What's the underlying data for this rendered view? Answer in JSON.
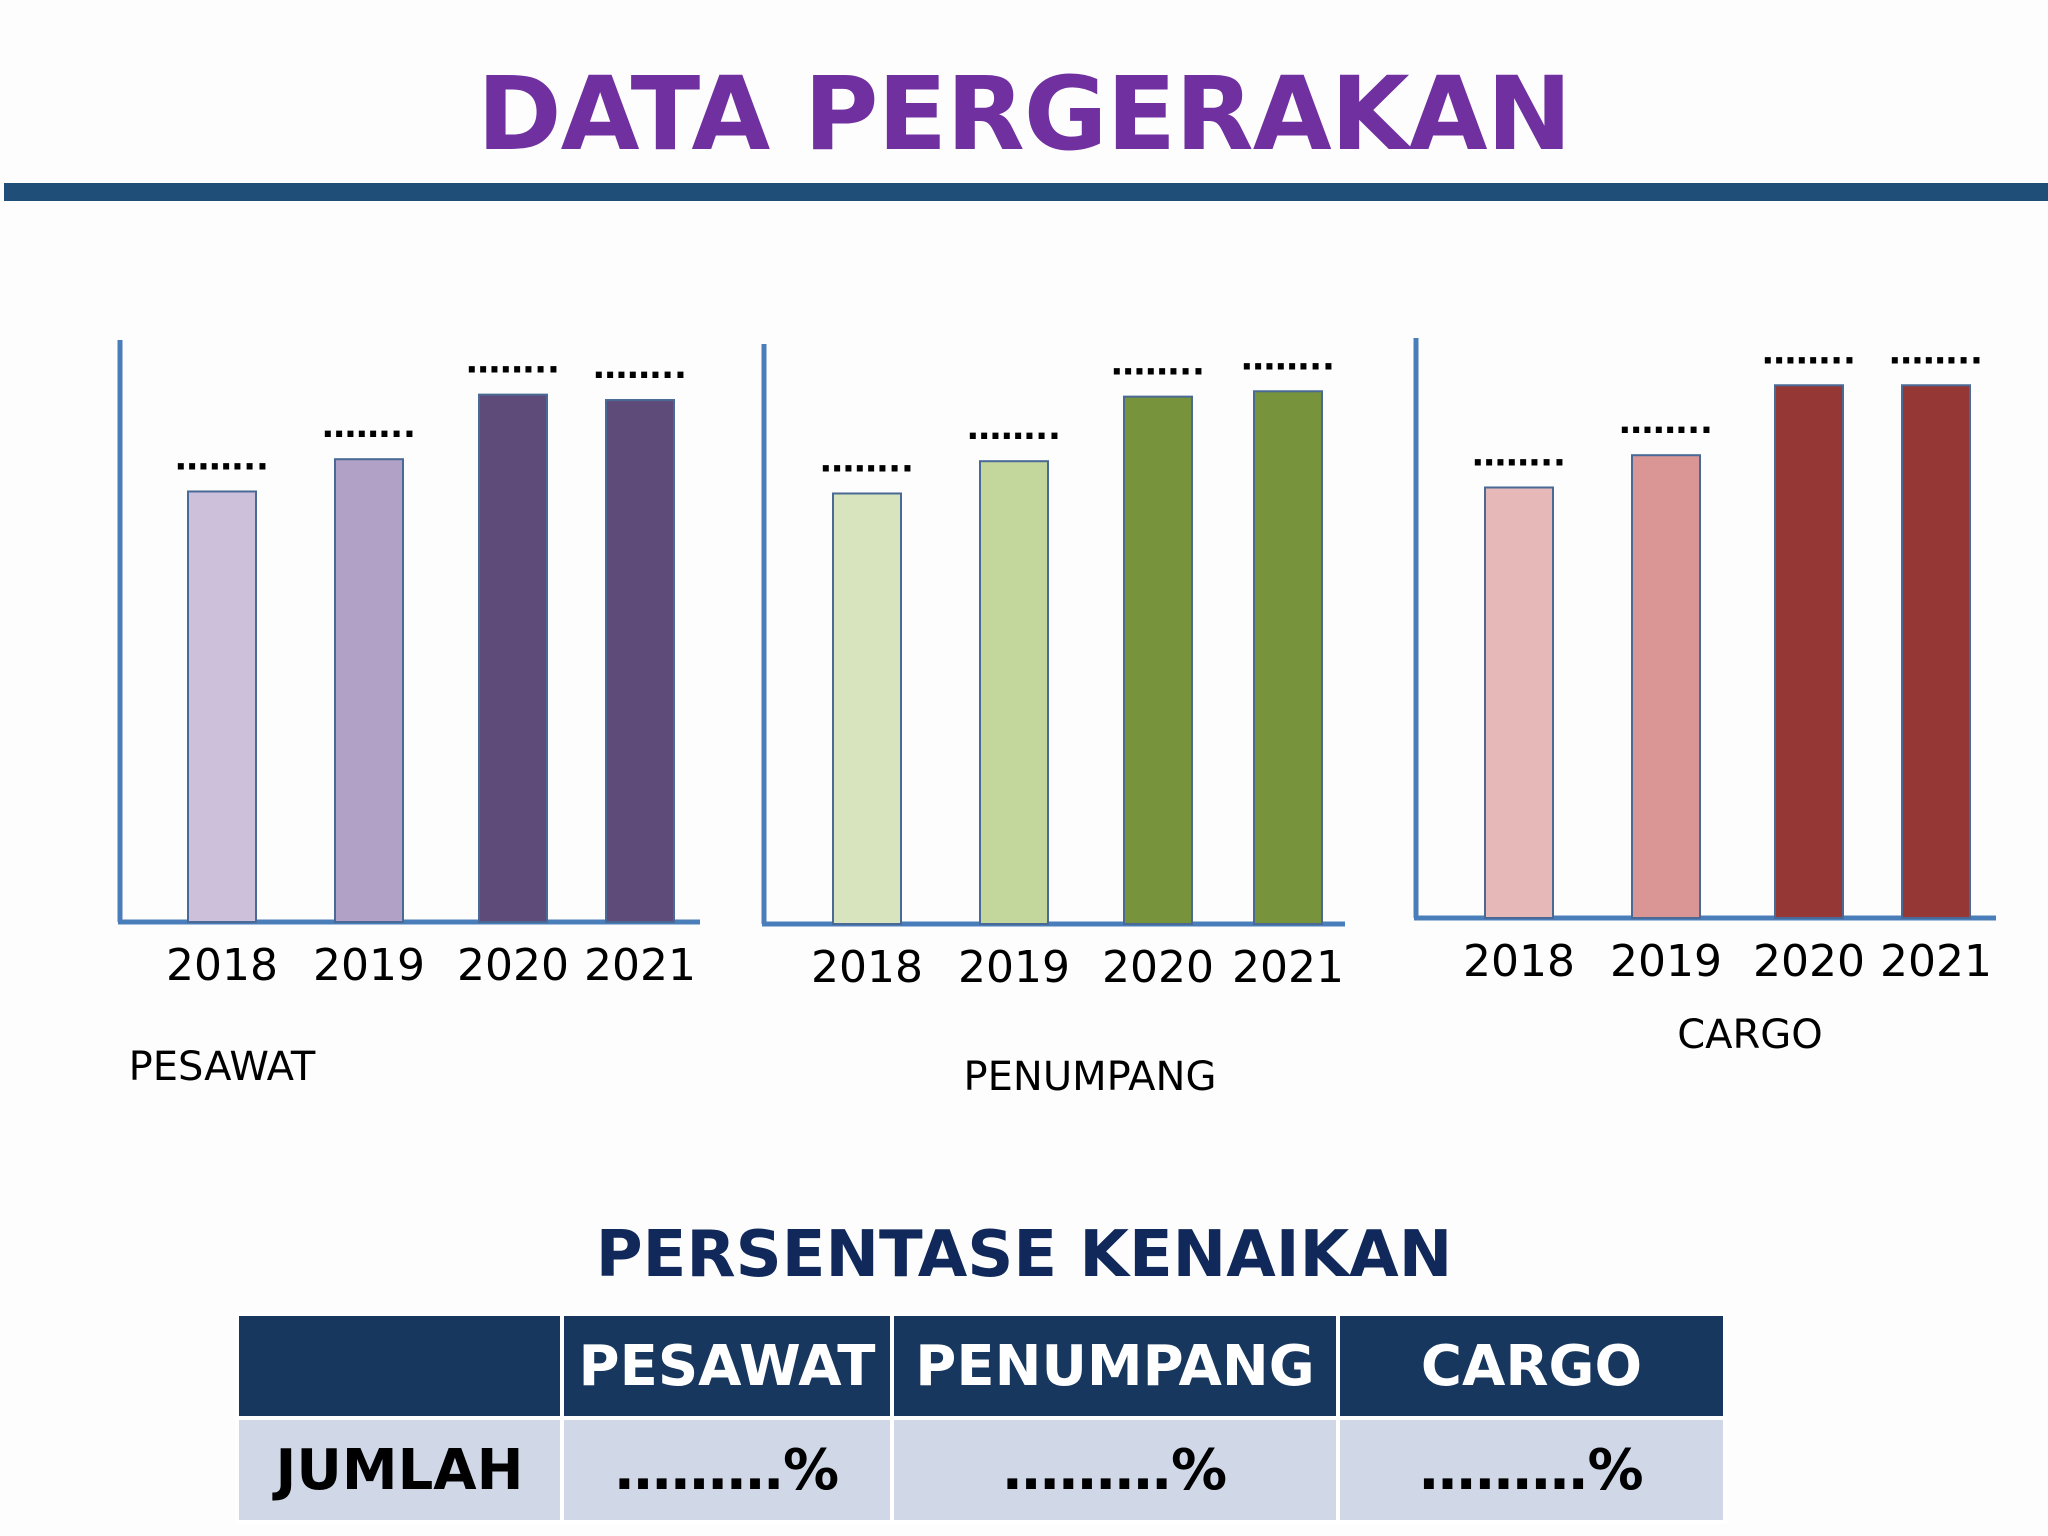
{
  "title": "DATA PERGERAKAN",
  "chart_data": [
    {
      "type": "bar",
      "label": "PESAWAT",
      "categories": [
        "2018",
        "2019",
        "2020",
        "2021"
      ],
      "values": [
        54,
        60,
        72,
        71
      ],
      "data_labels": [
        "……..",
        "……..",
        "……..",
        "…….."
      ],
      "colors": [
        "#ccc0da",
        "#b2a1c7",
        "#5f4b7a",
        "#5f4b7a"
      ],
      "grid": false,
      "legend": "none"
    },
    {
      "type": "bar",
      "label": "PENUMPANG",
      "categories": [
        "2018",
        "2019",
        "2020",
        "2021"
      ],
      "values": [
        54,
        60,
        72,
        73
      ],
      "data_labels": [
        "……..",
        "……..",
        "……..",
        "…….."
      ],
      "colors": [
        "#d7e4bd",
        "#c3d69b",
        "#77933c",
        "#77933c"
      ],
      "grid": false,
      "legend": "none"
    },
    {
      "type": "bar",
      "label": "CARGO",
      "categories": [
        "2018",
        "2019",
        "2020",
        "2021"
      ],
      "values": [
        54,
        60,
        73,
        73
      ],
      "data_labels": [
        "……..",
        "……..",
        "……..",
        "…….."
      ],
      "colors": [
        "#e6b9b8",
        "#d99694",
        "#953735",
        "#953735"
      ],
      "grid": false,
      "legend": "none"
    }
  ],
  "table": {
    "heading": "PERSENTASE KENAIKAN",
    "columns": [
      "",
      "PESAWAT",
      "PENUMPANG",
      "CARGO"
    ],
    "rows": [
      {
        "label": "JUMLAH",
        "values": [
          "………%",
          "………%",
          "………%"
        ]
      }
    ]
  }
}
